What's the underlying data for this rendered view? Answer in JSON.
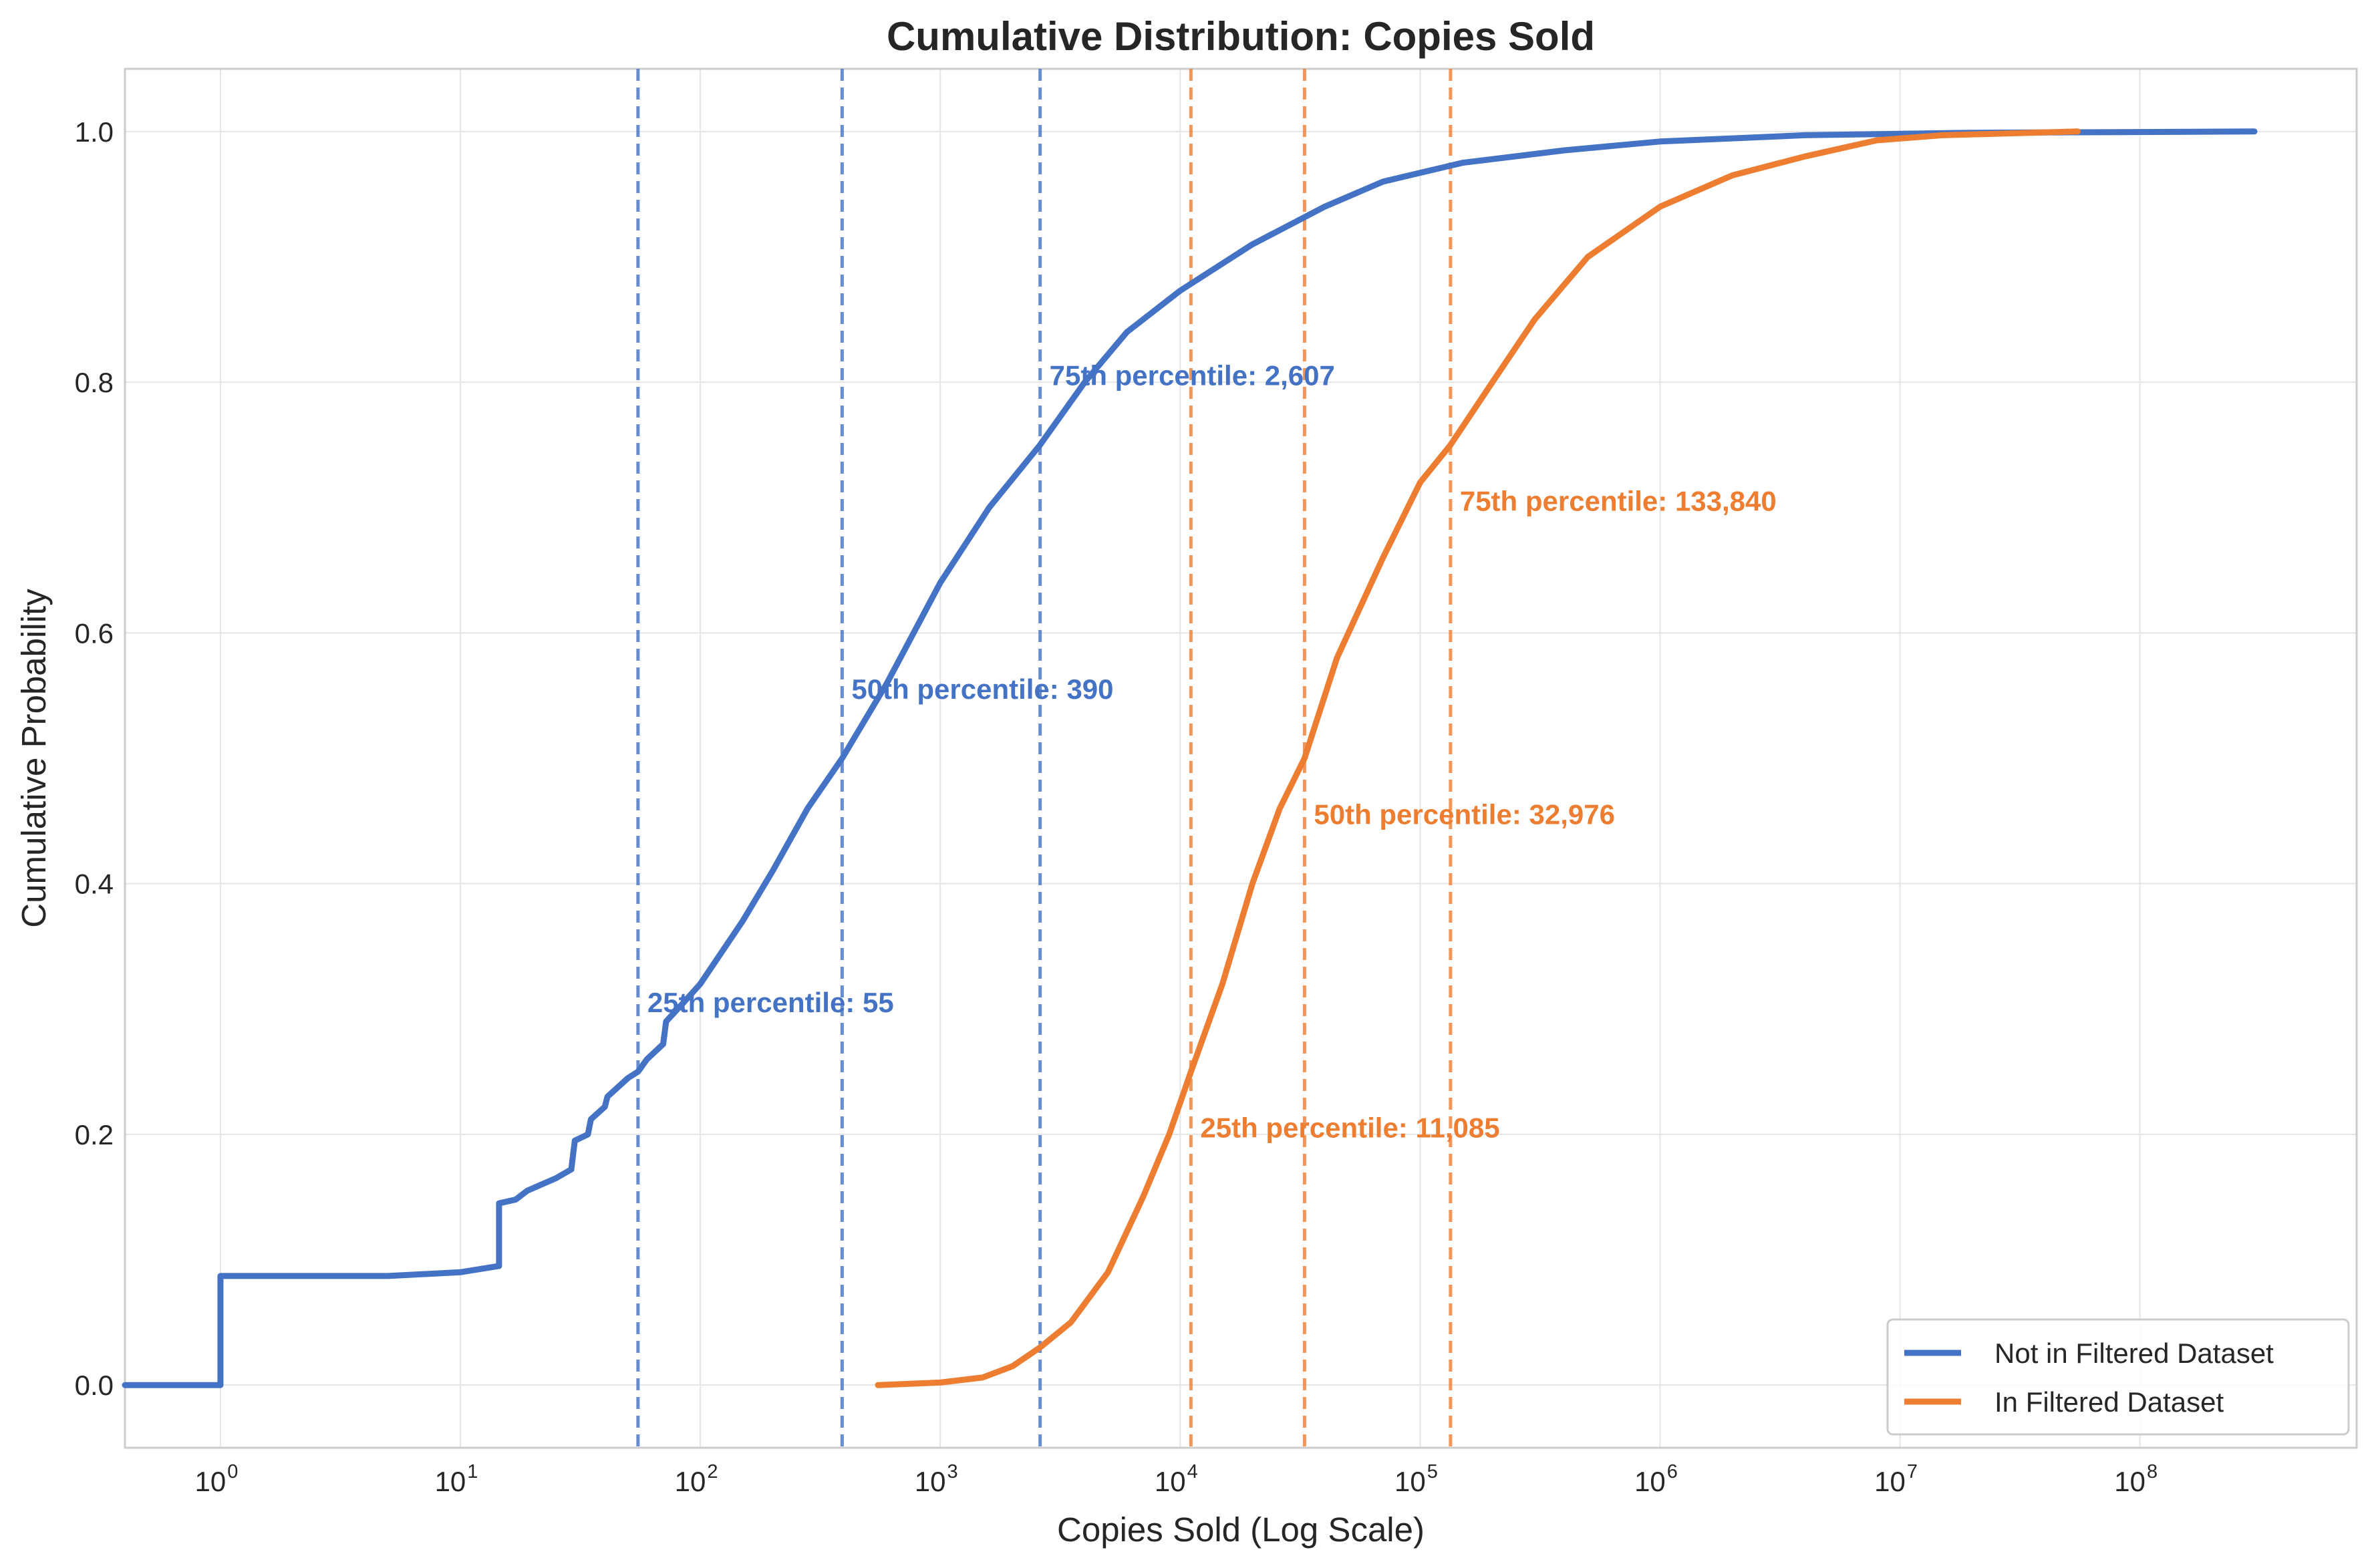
{
  "chart_data": {
    "type": "line",
    "title": "Cumulative Distribution: Copies Sold",
    "xlabel": "Copies Sold (Log Scale)",
    "ylabel": "Cumulative Probability",
    "xscale": "log",
    "xlim": [
      0.4,
      800000000
    ],
    "ylim": [
      -0.05,
      1.05
    ],
    "x_ticks": [
      {
        "base": "10",
        "exp": "0",
        "value": 1
      },
      {
        "base": "10",
        "exp": "1",
        "value": 10
      },
      {
        "base": "10",
        "exp": "2",
        "value": 100
      },
      {
        "base": "10",
        "exp": "3",
        "value": 1000
      },
      {
        "base": "10",
        "exp": "4",
        "value": 10000
      },
      {
        "base": "10",
        "exp": "5",
        "value": 100000
      },
      {
        "base": "10",
        "exp": "6",
        "value": 1000000
      },
      {
        "base": "10",
        "exp": "7",
        "value": 10000000
      },
      {
        "base": "10",
        "exp": "8",
        "value": 100000000
      }
    ],
    "y_ticks": [
      {
        "label": "0.0",
        "value": 0.0
      },
      {
        "label": "0.2",
        "value": 0.2
      },
      {
        "label": "0.4",
        "value": 0.4
      },
      {
        "label": "0.6",
        "value": 0.6
      },
      {
        "label": "0.8",
        "value": 0.8
      },
      {
        "label": "1.0",
        "value": 1.0
      }
    ],
    "grid": true,
    "legend_position": "bottom-right",
    "series": [
      {
        "name": "Not in Filtered Dataset",
        "color": "#4472C4",
        "points": [
          [
            0.4,
            0.0
          ],
          [
            1,
            0.0
          ],
          [
            1,
            0.087
          ],
          [
            5,
            0.087
          ],
          [
            10,
            0.09
          ],
          [
            14.5,
            0.095
          ],
          [
            14.5,
            0.145
          ],
          [
            17,
            0.148
          ],
          [
            19,
            0.155
          ],
          [
            25,
            0.165
          ],
          [
            29,
            0.172
          ],
          [
            30,
            0.195
          ],
          [
            34,
            0.2
          ],
          [
            35,
            0.212
          ],
          [
            40,
            0.222
          ],
          [
            41,
            0.23
          ],
          [
            50,
            0.245
          ],
          [
            55,
            0.25
          ],
          [
            60,
            0.26
          ],
          [
            70,
            0.272
          ],
          [
            72,
            0.29
          ],
          [
            85,
            0.305
          ],
          [
            100,
            0.32
          ],
          [
            150,
            0.37
          ],
          [
            200,
            0.41
          ],
          [
            280,
            0.46
          ],
          [
            390,
            0.5
          ],
          [
            600,
            0.56
          ],
          [
            1000,
            0.64
          ],
          [
            1600,
            0.7
          ],
          [
            2607,
            0.75
          ],
          [
            4000,
            0.8
          ],
          [
            6000,
            0.84
          ],
          [
            10000,
            0.873
          ],
          [
            20000,
            0.91
          ],
          [
            40000,
            0.94
          ],
          [
            70000,
            0.96
          ],
          [
            150000,
            0.975
          ],
          [
            400000,
            0.985
          ],
          [
            1000000,
            0.992
          ],
          [
            4000000,
            0.997
          ],
          [
            20000000,
            0.999
          ],
          [
            300000000,
            1.0
          ]
        ]
      },
      {
        "name": "In Filtered Dataset",
        "color": "#ED7D31",
        "points": [
          [
            550,
            0.0
          ],
          [
            1000,
            0.002
          ],
          [
            1500,
            0.006
          ],
          [
            2000,
            0.015
          ],
          [
            2607,
            0.03
          ],
          [
            3500,
            0.05
          ],
          [
            5000,
            0.09
          ],
          [
            7000,
            0.15
          ],
          [
            9000,
            0.2
          ],
          [
            11085,
            0.25
          ],
          [
            15000,
            0.32
          ],
          [
            20000,
            0.4
          ],
          [
            26000,
            0.46
          ],
          [
            32976,
            0.5
          ],
          [
            45000,
            0.58
          ],
          [
            70000,
            0.66
          ],
          [
            100000,
            0.72
          ],
          [
            133840,
            0.75
          ],
          [
            200000,
            0.8
          ],
          [
            300000,
            0.85
          ],
          [
            500000,
            0.9
          ],
          [
            1000000,
            0.94
          ],
          [
            2000000,
            0.965
          ],
          [
            4000000,
            0.98
          ],
          [
            8000000,
            0.993
          ],
          [
            15000000,
            0.997
          ],
          [
            55000000,
            1.0
          ]
        ]
      }
    ],
    "percentile_lines": [
      {
        "series": "Not in Filtered Dataset",
        "value": 55,
        "label": "25th percentile: 55",
        "label_y": 0.305,
        "color": "#4472C4"
      },
      {
        "series": "Not in Filtered Dataset",
        "value": 390,
        "label": "50th percentile: 390",
        "label_y": 0.555,
        "color": "#4472C4"
      },
      {
        "series": "Not in Filtered Dataset",
        "value": 2607,
        "label": "75th percentile: 2,607",
        "label_y": 0.805,
        "color": "#4472C4"
      },
      {
        "series": "In Filtered Dataset",
        "value": 11085,
        "label": "25th percentile: 11,085",
        "label_y": 0.205,
        "color": "#ED7D31"
      },
      {
        "series": "In Filtered Dataset",
        "value": 32976,
        "label": "50th percentile: 32,976",
        "label_y": 0.455,
        "color": "#ED7D31"
      },
      {
        "series": "In Filtered Dataset",
        "value": 133840,
        "label": "75th percentile: 133,840",
        "label_y": 0.705,
        "color": "#ED7D31"
      }
    ]
  }
}
